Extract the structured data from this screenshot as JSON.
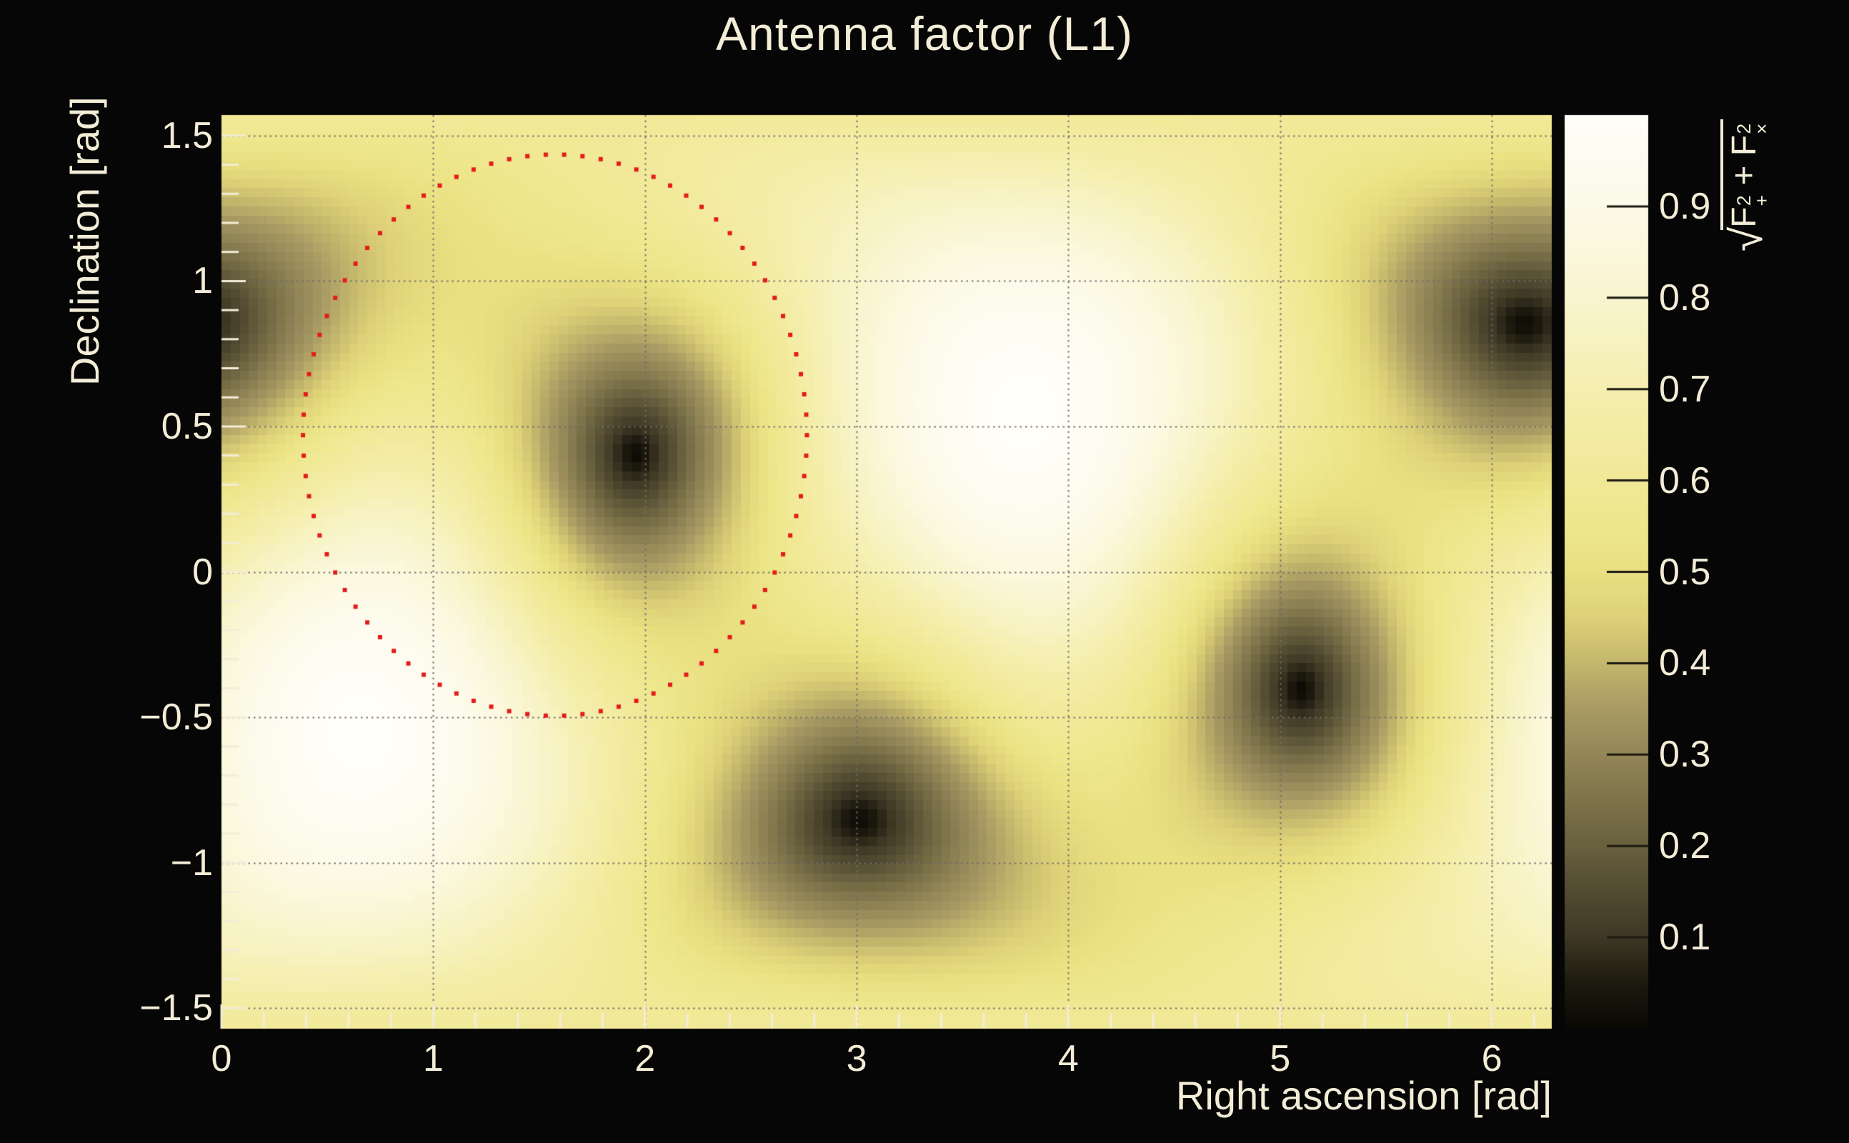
{
  "window": {
    "background_color": "#060606",
    "text_color": "#f3edd7"
  },
  "chart_data": {
    "type": "heatmap",
    "title": "Antenna factor (L1)",
    "xlabel": "Right ascension [rad]",
    "ylabel": "Declination [rad]",
    "zlabel": "√(F₊² + F×²)",
    "zlabel_parts": {
      "sqrt": "√",
      "f": "F",
      "sup2": "2",
      "sub_plus": "+",
      "plus_sign": "+",
      "sub_cross": "×"
    },
    "x_range": [
      0,
      6.28319
    ],
    "y_range": [
      -1.5708,
      1.5708
    ],
    "z_range": [
      0,
      1
    ],
    "grid": true,
    "grid_style": "dotted",
    "x_ticks": [
      {
        "value": 0,
        "label": "0"
      },
      {
        "value": 1,
        "label": "1"
      },
      {
        "value": 2,
        "label": "2"
      },
      {
        "value": 3,
        "label": "3"
      },
      {
        "value": 4,
        "label": "4"
      },
      {
        "value": 5,
        "label": "5"
      },
      {
        "value": 6,
        "label": "6"
      }
    ],
    "x_minor_step": 0.2,
    "y_ticks": [
      {
        "value": 1.5,
        "label": "1.5"
      },
      {
        "value": 1.0,
        "label": "1"
      },
      {
        "value": 0.5,
        "label": "0.5"
      },
      {
        "value": 0.0,
        "label": "0"
      },
      {
        "value": -0.5,
        "label": "−0.5"
      },
      {
        "value": -1.0,
        "label": "−1"
      },
      {
        "value": -1.5,
        "label": "−1.5"
      }
    ],
    "y_minor_step": 0.1,
    "z_ticks": [
      {
        "value": 0.9,
        "label": "0.9"
      },
      {
        "value": 0.8,
        "label": "0.8"
      },
      {
        "value": 0.7,
        "label": "0.7"
      },
      {
        "value": 0.6,
        "label": "0.6"
      },
      {
        "value": 0.5,
        "label": "0.5"
      },
      {
        "value": 0.4,
        "label": "0.4"
      },
      {
        "value": 0.3,
        "label": "0.3"
      },
      {
        "value": 0.2,
        "label": "0.2"
      },
      {
        "value": 0.1,
        "label": "0.1"
      }
    ],
    "heatmap_model": {
      "description": "Sky map of the L1 detector antenna-pattern magnitude sqrt(F+^2 + Fx^2). Value 1 at the detector zenith/nadir directions, 0 at the four horizon nulls. Computed as v = sqrt( (((1+c^2)/2)*cos2phi)^2 + (c*sin2phi)^2 ) where c = n·zenith and phi is the azimuth of sky direction n about the detector zenith measured from the arm axis e1.",
      "bins": [
        146,
        100
      ],
      "zenith_vector": [
        -0.674,
        -0.517,
        0.527
      ],
      "arm_basis_e1": [
        -0.709,
        0.664,
        -0.256
      ],
      "arm_basis_e2": [
        -0.218,
        -0.546,
        -0.814
      ],
      "maxima_radec": [
        [
          3.8,
          0.55
        ],
        [
          0.66,
          -0.56
        ]
      ],
      "nulls_radec": [
        [
          1.96,
          0.4
        ],
        [
          3.01,
          -0.85
        ],
        [
          5.12,
          -0.39
        ],
        [
          6.16,
          0.87
        ]
      ]
    },
    "colormap": {
      "name": "black-olive-yellow-white",
      "stops": [
        [
          0.0,
          "#090803"
        ],
        [
          0.05,
          "#1d1a0f"
        ],
        [
          0.1,
          "#3e3825"
        ],
        [
          0.15,
          "#534b31"
        ],
        [
          0.2,
          "#68603e"
        ],
        [
          0.25,
          "#7e744b"
        ],
        [
          0.3,
          "#938758"
        ],
        [
          0.35,
          "#a89a63"
        ],
        [
          0.4,
          "#c4b76c"
        ],
        [
          0.45,
          "#ded178"
        ],
        [
          0.5,
          "#e9e081"
        ],
        [
          0.55,
          "#eee78c"
        ],
        [
          0.6,
          "#f1e997"
        ],
        [
          0.65,
          "#f3eca3"
        ],
        [
          0.7,
          "#f5efb0"
        ],
        [
          0.75,
          "#f7f2c0"
        ],
        [
          0.8,
          "#f9f5cf"
        ],
        [
          0.85,
          "#fbf8dd"
        ],
        [
          0.9,
          "#fcfae8"
        ],
        [
          0.95,
          "#fefcf1"
        ],
        [
          1.0,
          "#fffef8"
        ]
      ]
    },
    "overlay_ring": {
      "description": "Ring of red dotted markers overlaid on the sky map",
      "center_radec": [
        1.575,
        0.47
      ],
      "rx_rad": 1.19,
      "ry_rad": 0.965,
      "n_points": 86,
      "marker": "square",
      "marker_px": 6,
      "color": "#e41b1b"
    },
    "legend_position": "right-colorbar"
  },
  "styles": {
    "grid_color": "#6f6f6f",
    "tick_color": "#f3edd7",
    "colorbar_tick_color": "#1c1a12"
  }
}
